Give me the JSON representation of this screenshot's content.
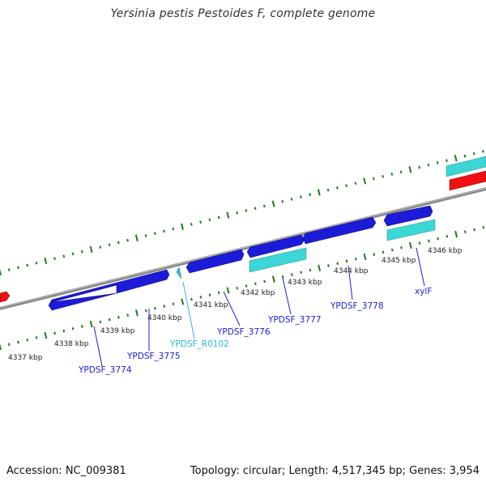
{
  "title": "Yersinia pestis Pestoides F, complete genome",
  "footer": {
    "accession": "Accession: NC_009381",
    "stats": "Topology: circular; Length: 4,517,345 bp; Genes: 3,954"
  },
  "colors": {
    "cds": "#1c1cd8",
    "rna": "#29b8dc",
    "cyan_feature": "#3cd6d6",
    "red_feature": "#ee1111",
    "backbone": "#8a8a8a",
    "tick": "#1e7a1e"
  },
  "kbp_labels": [
    "4337 kbp",
    "4338 kbp",
    "4339 kbp",
    "4340 kbp",
    "4341 kbp",
    "4342 kbp",
    "4343 kbp",
    "4344 kbp",
    "4345 kbp",
    "4346 kbp"
  ],
  "gene_labels": [
    {
      "text": "YPDSF_3774",
      "color": "#1c1cd8"
    },
    {
      "text": "YPDSF_3775",
      "color": "#1c1cd8"
    },
    {
      "text": "YPDSF_R0102",
      "color": "#29b8dc"
    },
    {
      "text": "YPDSF_3776",
      "color": "#1c1cd8"
    },
    {
      "text": "YPDSF_3777",
      "color": "#1c1cd8"
    },
    {
      "text": "YPDSF_3778",
      "color": "#1c1cd8"
    },
    {
      "text": "xylF",
      "color": "#1c1cd8"
    }
  ]
}
